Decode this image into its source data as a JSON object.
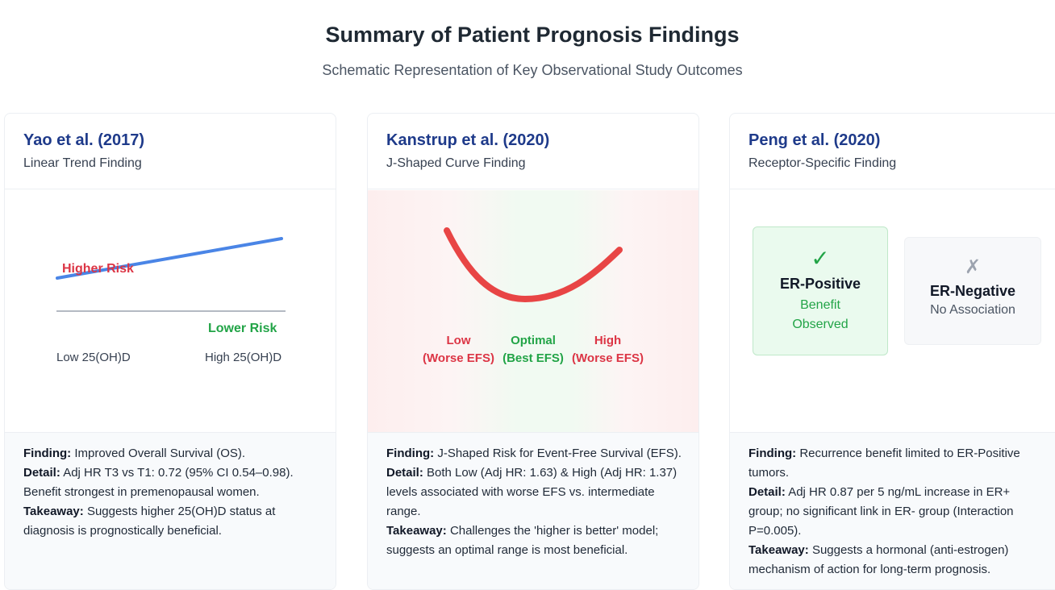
{
  "header": {
    "title": "Summary of Patient Prognosis Findings",
    "subtitle": "Schematic Representation of Key Observational Study Outcomes"
  },
  "cards": [
    {
      "title": "Yao et al. (2017)",
      "subtitle": "Linear Trend Finding",
      "viz": {
        "higher_risk_label": "Higher Risk",
        "lower_risk_label": "Lower Risk",
        "x_low_label": "Low 25(OH)D",
        "x_high_label": "High 25(OH)D"
      },
      "finding_label": "Finding:",
      "finding_text": "Improved Overall Survival (OS).",
      "detail_label": "Detail:",
      "detail_text": "Adj HR T3 vs T1: 0.72 (95% CI 0.54–0.98). Benefit strongest in premenopausal women.",
      "takeaway_label": "Takeaway:",
      "takeaway_text": "Suggests higher 25(OH)D status at diagnosis is prognostically beneficial."
    },
    {
      "title": "Kanstrup et al. (2020)",
      "subtitle": "J-Shaped Curve Finding",
      "viz": {
        "low_label": "Low",
        "low_sub": "(Worse EFS)",
        "optimal_label": "Optimal",
        "optimal_sub": "(Best EFS)",
        "high_label": "High",
        "high_sub": "(Worse EFS)"
      },
      "finding_label": "Finding:",
      "finding_text": "J-Shaped Risk for Event-Free Survival (EFS).",
      "detail_label": "Detail:",
      "detail_text": "Both Low (Adj HR: 1.63) & High (Adj HR: 1.37) levels associated with worse EFS vs. intermediate range.",
      "takeaway_label": "Takeaway:",
      "takeaway_text": "Challenges the 'higher is better' model; suggests an optimal range is most beneficial."
    },
    {
      "title": "Peng et al. (2020)",
      "subtitle": "Receptor-Specific Finding",
      "viz": {
        "pos_icon": "✓",
        "pos_title": "ER-Positive",
        "pos_line1": "Benefit",
        "pos_line2": "Observed",
        "neg_icon": "✗",
        "neg_title": "ER-Negative",
        "neg_text": "No Association"
      },
      "finding_label": "Finding:",
      "finding_text": "Recurrence benefit limited to ER-Positive tumors.",
      "detail_label": "Detail:",
      "detail_text": "Adj HR 0.87 per 5 ng/mL increase in ER+ group; no significant link in ER- group (Interaction P=0.005).",
      "takeaway_label": "Takeaway:",
      "takeaway_text": "Suggests a hormonal (anti-estrogen) mechanism of action for long-term prognosis."
    }
  ],
  "colors": {
    "title_blue": "#1e3a8a",
    "trend_line": "#4a85e6",
    "risk_red": "#dc3545",
    "benefit_green": "#22a447",
    "curve_red": "#e84545"
  }
}
